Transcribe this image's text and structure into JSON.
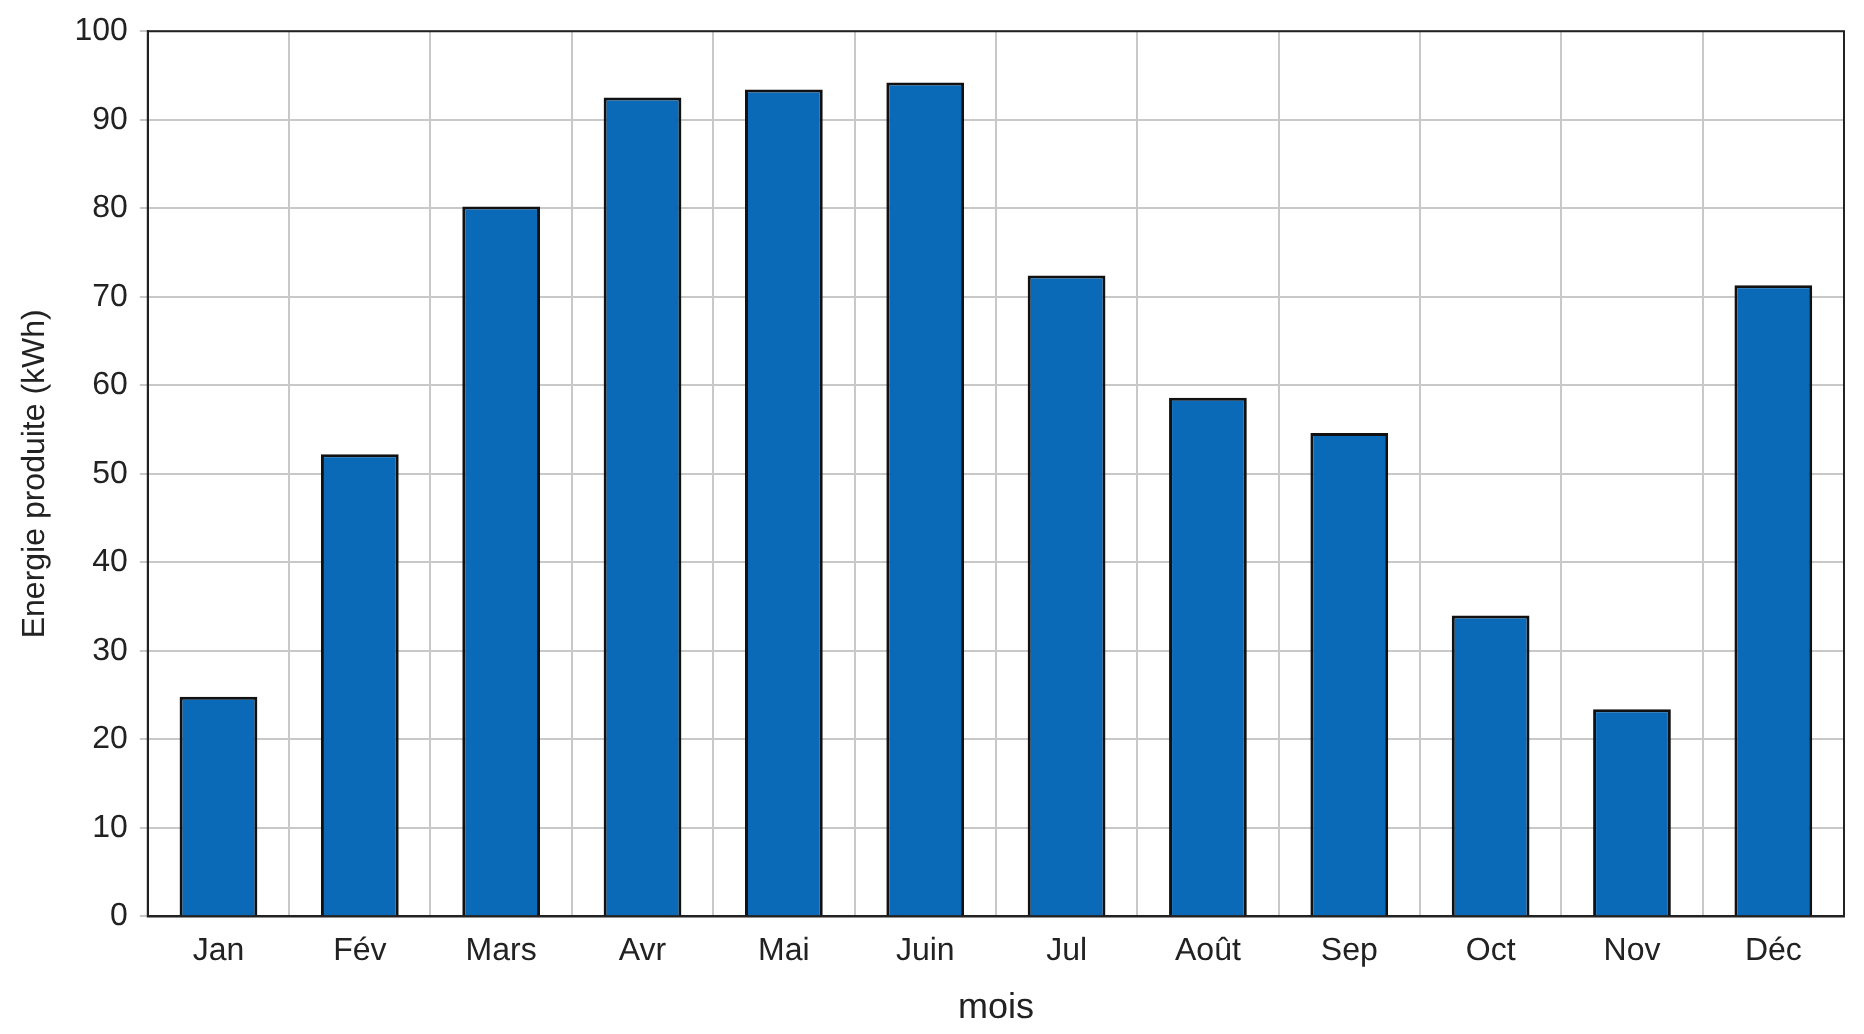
{
  "chart_data": {
    "type": "bar",
    "xlabel": "mois",
    "ylabel": "Energie produite (kWh)",
    "categories": [
      "Jan",
      "Fév",
      "Mars",
      "Avr",
      "Mai",
      "Juin",
      "Jul",
      "Août",
      "Sep",
      "Oct",
      "Nov",
      "Déc"
    ],
    "values": [
      24.8,
      52.2,
      80.2,
      92.5,
      93.4,
      94.2,
      72.4,
      58.6,
      54.6,
      34,
      23.4,
      71.3
    ],
    "color": "#0a6ab8",
    "ylim": [
      0,
      100
    ],
    "yticks": [
      0,
      10,
      20,
      30,
      40,
      50,
      60,
      70,
      80,
      90,
      100
    ],
    "grid": true
  }
}
